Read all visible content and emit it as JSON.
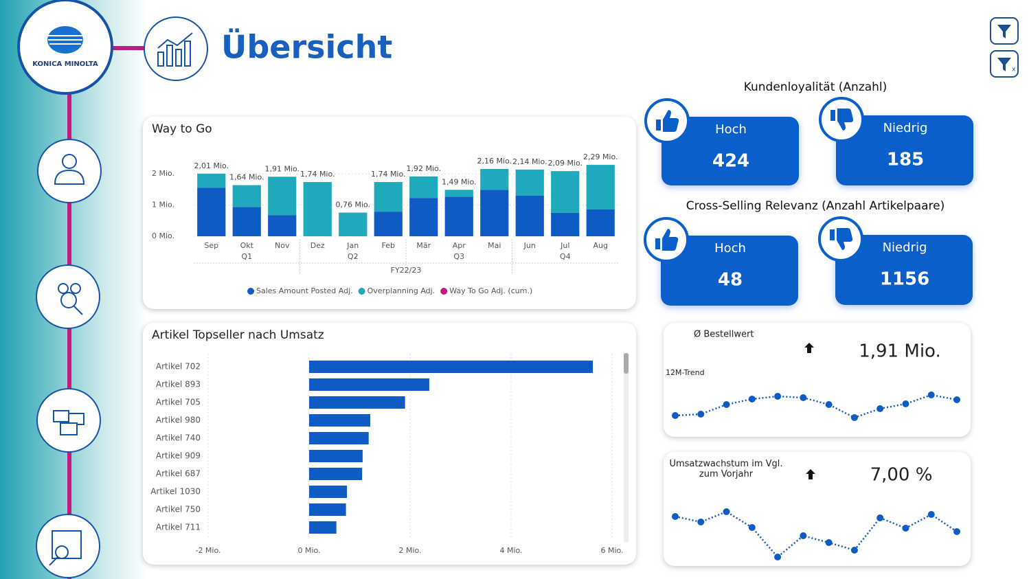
{
  "header": {
    "logo": "KONICA MINOLTA",
    "title": "Übersicht"
  },
  "kpis": [
    {
      "title": "Kundenloyalität (Anzahl)",
      "cards": [
        {
          "label": "Hoch",
          "value": 424
        },
        {
          "label": "Niedrig",
          "value": 185
        }
      ]
    },
    {
      "title": "Cross-Selling Relevanz (Anzahl Artikelpaare)",
      "cards": [
        {
          "label": "Hoch",
          "value": 48
        },
        {
          "label": "Niedrig",
          "value": 1156
        }
      ]
    }
  ],
  "chart_data": [
    {
      "type": "stacked_bar",
      "title": "Way to Go",
      "categories": [
        "Sep",
        "Okt",
        "Nov",
        "Dez",
        "Jan",
        "Feb",
        "Mär",
        "Apr",
        "Mai",
        "Jun",
        "Jul",
        "Aug"
      ],
      "quarters": [
        "Q1",
        "Q2",
        "Q3",
        "Q4"
      ],
      "fiscal_year": "FY22/23",
      "series": [
        {
          "name": "Sales Amount Posted Adj.",
          "color": "#0f5bc4",
          "values": [
            1.56,
            0.94,
            0.68,
            0,
            0,
            0.79,
            1.23,
            1.27,
            1.49,
            1.3,
            0.75,
            0.86
          ]
        },
        {
          "name": "Overplanning Adj.",
          "color": "#1fa9bd",
          "values": [
            0.45,
            0.7,
            1.23,
            1.74,
            0.76,
            0.95,
            0.69,
            0.22,
            0.67,
            0.84,
            1.34,
            1.43
          ]
        },
        {
          "name": "Way To Go Adj. (cum.)",
          "color": "#c4197f",
          "values": [
            null,
            null,
            null,
            null,
            null,
            null,
            null,
            null,
            null,
            null,
            null,
            null
          ]
        }
      ],
      "totals": [
        2.01,
        1.64,
        1.91,
        1.74,
        0.76,
        1.74,
        1.92,
        1.49,
        2.16,
        2.14,
        2.09,
        2.29
      ],
      "total_labels": [
        "2,01 Mio.",
        "1,64 Mio.",
        "1,91 Mio.",
        "1,74 Mio.",
        "0,76 Mio.",
        "1,74 Mio.",
        "1,92 Mio.",
        "1,49 Mio.",
        "2,16 Mio.",
        "2,14 Mio.",
        "2,09 Mio.",
        "2,29 Mio."
      ],
      "ylim": [
        0,
        2.6
      ],
      "yticks": [
        {
          "value": 0,
          "label": "0 Mio."
        },
        {
          "value": 1,
          "label": "1 Mio."
        },
        {
          "value": 2,
          "label": "2 Mio."
        }
      ],
      "grid": true,
      "legend": "bottom"
    },
    {
      "type": "hbar",
      "title": "Artikel Topseller nach Umsatz",
      "categories": [
        "Artikel 702",
        "Artikel 893",
        "Artikel 705",
        "Artikel 980",
        "Artikel 740",
        "Artikel 909",
        "Artikel 687",
        "Artikel 1030",
        "Artikel 750",
        "Artikel 711"
      ],
      "values": [
        5.62,
        2.38,
        1.9,
        1.21,
        1.18,
        1.06,
        1.05,
        0.75,
        0.73,
        0.54
      ],
      "color": "#0f5bc4",
      "xlim": [
        -2.2,
        6.2
      ],
      "xticks": [
        {
          "value": -2,
          "label": "-2 Mio."
        },
        {
          "value": 0,
          "label": "0 Mio."
        },
        {
          "value": 2,
          "label": "2 Mio."
        },
        {
          "value": 4,
          "label": "4 Mio."
        },
        {
          "value": 6,
          "label": "6 Mio."
        }
      ],
      "grid": true
    },
    {
      "type": "line",
      "title": "Ø Bestellwert",
      "subtitle": "12M-Trend",
      "kpi": "1,91 Mio.",
      "values": [
        15,
        17,
        31,
        39,
        43,
        41,
        31,
        12,
        25,
        32,
        45,
        38
      ],
      "color": "#0f5bc4",
      "ylim": [
        0,
        50
      ]
    },
    {
      "type": "line",
      "title": "Umsatzwachstum im Vgl. zum Vorjahr",
      "kpi": "7,00 %",
      "values": [
        68,
        60,
        75,
        52,
        9,
        40,
        30,
        19,
        66,
        51,
        71,
        46
      ],
      "color": "#0f5bc4",
      "ylim": [
        0,
        80
      ]
    }
  ]
}
